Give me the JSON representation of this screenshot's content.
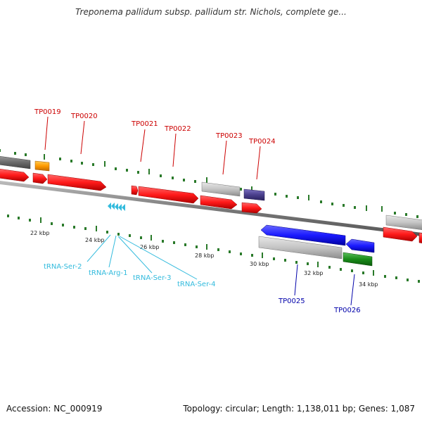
{
  "header": {
    "title": "Treponema pallidum subsp. pallidum str. Nichols, complete ge..."
  },
  "footer": {
    "accession": "Accession: NC_000919",
    "summary": "Topology: circular; Length: 1,138,011 bp; Genes: 1,087"
  },
  "scale_labels": [
    "22 kbp",
    "24 kbp",
    "26 kbp",
    "28 kbp",
    "30 kbp",
    "32 kbp",
    "34 kbp"
  ],
  "gene_labels_forward": [
    "TP0019",
    "TP0020",
    "TP0021",
    "TP0022",
    "TP0023",
    "TP0024"
  ],
  "gene_labels_reverse": [
    "TP0025",
    "TP0026"
  ],
  "trna_labels": [
    "tRNA-Ser-2",
    "tRNA-Arg-1",
    "tRNA-Ser-3",
    "tRNA-Ser-4"
  ],
  "colors": {
    "gene_red": "#ff1a1a",
    "gene_blue": "#1a1aff",
    "gene_green": "#1a8c1a",
    "gene_gray": "#bbbbbb",
    "gene_orange": "#ff9900",
    "gene_purple": "#4a3f8c",
    "trna": "#33bbdd",
    "tick_green": "#2a7a2a",
    "backbone": "#777777"
  }
}
